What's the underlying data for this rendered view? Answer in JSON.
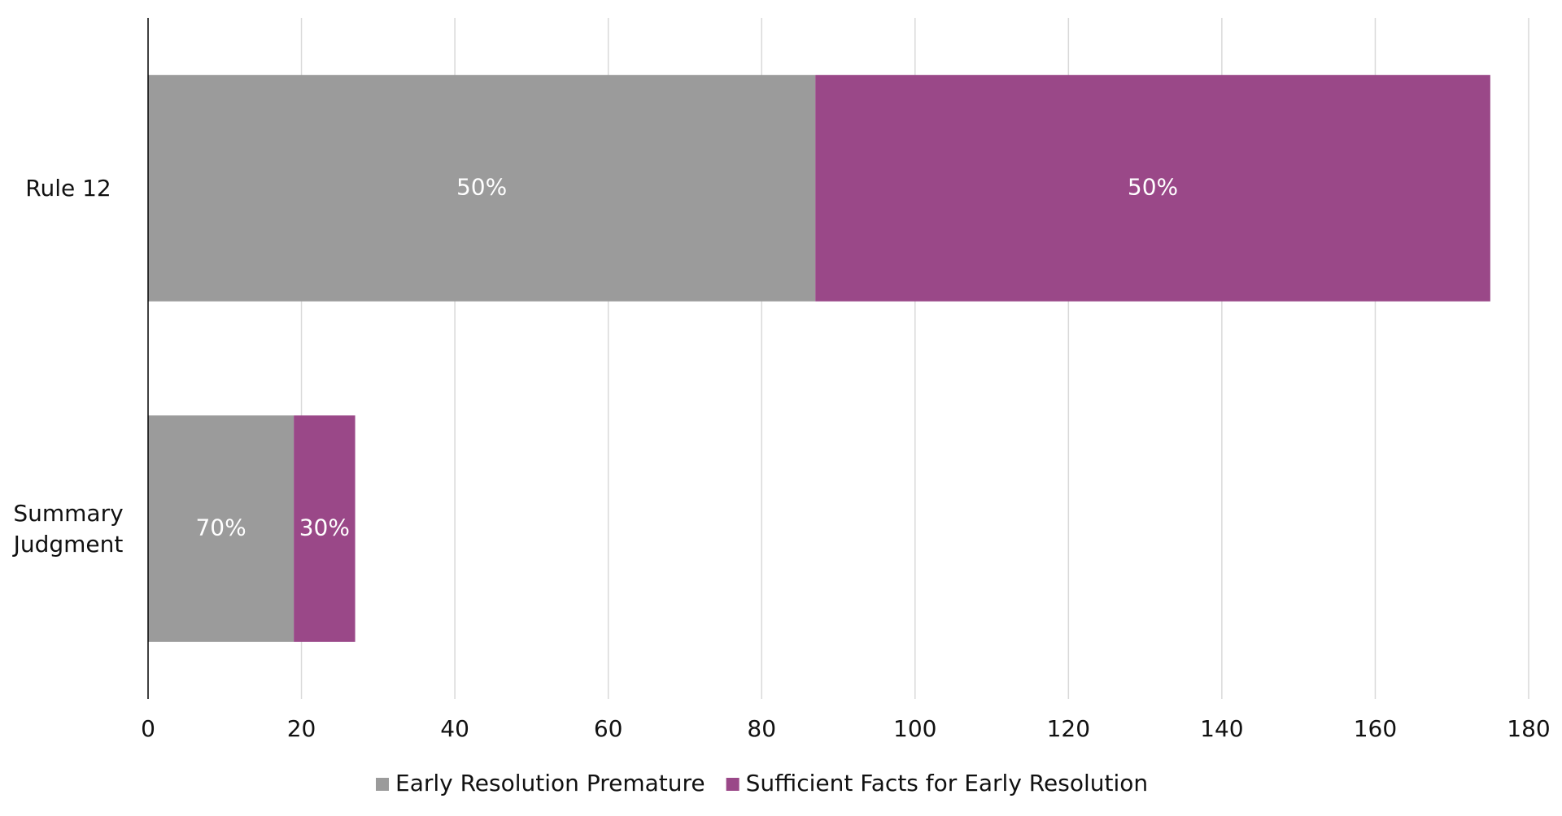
{
  "chart_data": {
    "type": "stacked_barh",
    "categories": [
      "Rule 12",
      "Summary Judgment"
    ],
    "series": [
      {
        "name": "Early Resolution Premature",
        "color": "#9b9b9b",
        "values": [
          87,
          19
        ],
        "percent_labels": [
          "50%",
          "70%"
        ]
      },
      {
        "name": "Sufficient Facts for Early Resolution",
        "color": "#9a4888",
        "values": [
          88,
          8
        ],
        "percent_labels": [
          "50%",
          "30%"
        ]
      }
    ],
    "xlim": [
      0,
      180
    ],
    "xticks": [
      0,
      20,
      40,
      60,
      80,
      100,
      120,
      140,
      160,
      180
    ],
    "grid": true,
    "legend": "bottom"
  }
}
